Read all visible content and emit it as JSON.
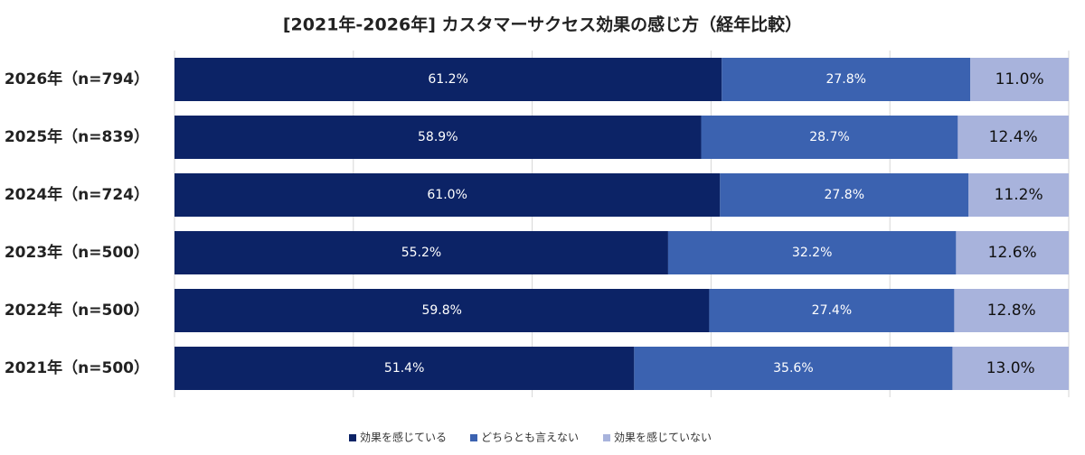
{
  "chart_data": {
    "type": "stacked-bar-horizontal",
    "title": "[2021年-2026年] カスタマーサクセス効果の感じ方（経年比較）",
    "categories": [
      "2026年（n=794）",
      "2025年（n=839）",
      "2024年（n=724）",
      "2023年（n=500）",
      "2022年（n=500）",
      "2021年（n=500）"
    ],
    "xlim": [
      0,
      100
    ],
    "xticks": [
      0,
      20,
      40,
      60,
      80,
      100
    ],
    "grid": true,
    "legend": "bottom",
    "series": [
      {
        "name": "効果を感じている",
        "color": "#0c2366",
        "label_color": "#ffffff",
        "values": [
          61.2,
          58.9,
          61.0,
          55.2,
          59.8,
          51.4
        ],
        "value_labels": [
          "61.2%",
          "58.9%",
          "61.0%",
          "55.2%",
          "59.8%",
          "51.4%"
        ]
      },
      {
        "name": "どちらとも言えない",
        "color": "#3b62b0",
        "label_color": "#ffffff",
        "values": [
          27.8,
          28.7,
          27.8,
          32.2,
          27.4,
          35.6
        ],
        "value_labels": [
          "27.8%",
          "28.7%",
          "27.8%",
          "32.2%",
          "27.4%",
          "35.6%"
        ]
      },
      {
        "name": "効果を感じていない",
        "color": "#a8b3dc",
        "label_color": "#111111",
        "values": [
          11.0,
          12.4,
          11.2,
          12.6,
          12.8,
          13.0
        ],
        "value_labels": [
          "11.0%",
          "12.4%",
          "11.2%",
          "12.6%",
          "12.8%",
          "13.0%"
        ]
      }
    ]
  }
}
